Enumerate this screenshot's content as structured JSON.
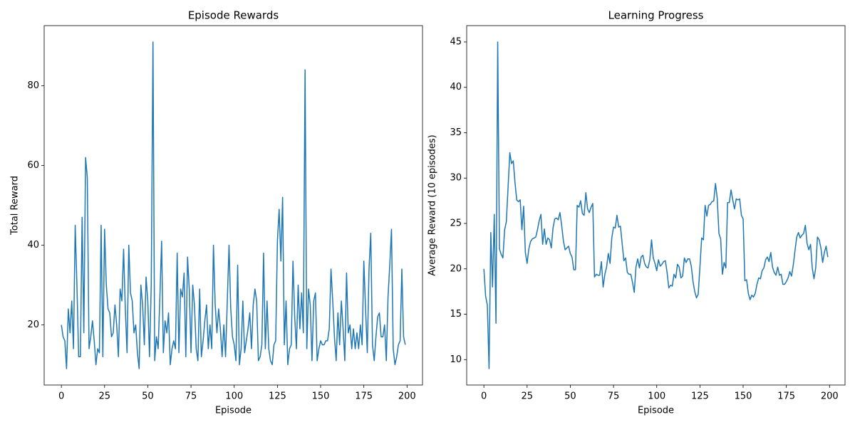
{
  "chart_data": [
    {
      "type": "line",
      "title": "Episode Rewards",
      "xlabel": "Episode",
      "ylabel": "Total Reward",
      "x": [
        0,
        1,
        2,
        3,
        4,
        5,
        6,
        7,
        8,
        9,
        10,
        11,
        12,
        13,
        14,
        15,
        16,
        17,
        18,
        19,
        20,
        21,
        22,
        23,
        24,
        25,
        26,
        27,
        28,
        29,
        30,
        31,
        32,
        33,
        34,
        35,
        36,
        37,
        38,
        39,
        40,
        41,
        42,
        43,
        44,
        45,
        46,
        47,
        48,
        49,
        50,
        51,
        52,
        53,
        54,
        55,
        56,
        57,
        58,
        59,
        60,
        61,
        62,
        63,
        64,
        65,
        66,
        67,
        68,
        69,
        70,
        71,
        72,
        73,
        74,
        75,
        76,
        77,
        78,
        79,
        80,
        81,
        82,
        83,
        84,
        85,
        86,
        87,
        88,
        89,
        90,
        91,
        92,
        93,
        94,
        95,
        96,
        97,
        98,
        99,
        100,
        101,
        102,
        103,
        104,
        105,
        106,
        107,
        108,
        109,
        110,
        111,
        112,
        113,
        114,
        115,
        116,
        117,
        118,
        119,
        120,
        121,
        122,
        123,
        124,
        125,
        126,
        127,
        128,
        129,
        130,
        131,
        132,
        133,
        134,
        135,
        136,
        137,
        138,
        139,
        140,
        141,
        142,
        143,
        144,
        145,
        146,
        147,
        148,
        149,
        150,
        151,
        152,
        153,
        154,
        155,
        156,
        157,
        158,
        159,
        160,
        161,
        162,
        163,
        164,
        165,
        166,
        167,
        168,
        169,
        170,
        171,
        172,
        173,
        174,
        175,
        176,
        177,
        178,
        179,
        180,
        181,
        182,
        183,
        184,
        185,
        186,
        187,
        188,
        189,
        190,
        191,
        192,
        193,
        194,
        195,
        196,
        197,
        198,
        199
      ],
      "series": [
        {
          "color": "#1f77b4",
          "values": [
            20,
            17,
            16,
            9,
            24,
            18,
            26,
            14,
            45,
            30,
            12,
            12,
            47,
            18,
            62,
            57,
            14,
            17,
            21,
            16,
            10,
            14,
            13,
            45,
            12,
            44,
            30,
            24,
            23,
            17,
            18,
            25,
            20,
            12,
            29,
            26,
            39,
            24,
            13,
            40,
            28,
            26,
            18,
            20,
            13,
            9,
            30,
            25,
            15,
            32,
            26,
            12,
            30,
            91,
            11,
            17,
            14,
            27,
            41,
            13,
            21,
            18,
            23,
            10,
            14,
            16,
            14,
            38,
            13,
            29,
            27,
            33,
            12,
            37,
            29,
            13,
            30,
            25,
            14,
            11,
            29,
            12,
            16,
            21,
            25,
            14,
            20,
            14,
            40,
            25,
            18,
            24,
            19,
            12,
            20,
            12,
            26,
            40,
            24,
            17,
            15,
            11,
            35,
            10,
            14,
            26,
            13,
            16,
            19,
            23,
            14,
            25,
            29,
            26,
            11,
            12,
            15,
            38,
            14,
            26,
            14,
            11,
            10,
            15,
            16,
            41,
            49,
            36,
            52,
            15,
            26,
            10,
            14,
            15,
            36,
            22,
            14,
            30,
            19,
            28,
            18,
            84,
            14,
            29,
            25,
            11,
            26,
            28,
            11,
            14,
            16,
            15,
            15,
            16,
            16,
            19,
            34,
            26,
            17,
            11,
            23,
            15,
            26,
            19,
            11,
            33,
            18,
            20,
            14,
            19,
            14,
            18,
            14,
            20,
            15,
            36,
            24,
            13,
            34,
            43,
            15,
            11,
            17,
            22,
            23,
            17,
            17,
            20,
            11,
            27,
            35,
            44,
            14,
            10,
            12,
            15,
            16,
            34,
            17,
            15
          ]
        }
      ],
      "xlim": [
        -9.95,
        208.95
      ],
      "xticks": [
        0,
        25,
        50,
        75,
        100,
        125,
        150,
        175,
        200
      ],
      "ylim": [
        4.9,
        95.1
      ],
      "yticks": [
        20,
        40,
        60,
        80
      ]
    },
    {
      "type": "line",
      "title": "Learning Progress",
      "xlabel": "Episode",
      "ylabel": "Average Reward (10 episodes)",
      "x": [
        0,
        1,
        2,
        3,
        4,
        5,
        6,
        7,
        8,
        9,
        10,
        11,
        12,
        13,
        14,
        15,
        16,
        17,
        18,
        19,
        20,
        21,
        22,
        23,
        24,
        25,
        26,
        27,
        28,
        29,
        30,
        31,
        32,
        33,
        34,
        35,
        36,
        37,
        38,
        39,
        40,
        41,
        42,
        43,
        44,
        45,
        46,
        47,
        48,
        49,
        50,
        51,
        52,
        53,
        54,
        55,
        56,
        57,
        58,
        59,
        60,
        61,
        62,
        63,
        64,
        65,
        66,
        67,
        68,
        69,
        70,
        71,
        72,
        73,
        74,
        75,
        76,
        77,
        78,
        79,
        80,
        81,
        82,
        83,
        84,
        85,
        86,
        87,
        88,
        89,
        90,
        91,
        92,
        93,
        94,
        95,
        96,
        97,
        98,
        99,
        100,
        101,
        102,
        103,
        104,
        105,
        106,
        107,
        108,
        109,
        110,
        111,
        112,
        113,
        114,
        115,
        116,
        117,
        118,
        119,
        120,
        121,
        122,
        123,
        124,
        125,
        126,
        127,
        128,
        129,
        130,
        131,
        132,
        133,
        134,
        135,
        136,
        137,
        138,
        139,
        140,
        141,
        142,
        143,
        144,
        145,
        146,
        147,
        148,
        149,
        150,
        151,
        152,
        153,
        154,
        155,
        156,
        157,
        158,
        159,
        160,
        161,
        162,
        163,
        164,
        165,
        166,
        167,
        168,
        169,
        170,
        171,
        172,
        173,
        174,
        175,
        176,
        177,
        178,
        179,
        180,
        181,
        182,
        183,
        184,
        185,
        186,
        187,
        188,
        189,
        190,
        191,
        192,
        193,
        194,
        195,
        196,
        197,
        198,
        199
      ],
      "series": [
        {
          "color": "#1f77b4",
          "values": [
            20,
            17,
            16,
            9,
            24,
            18,
            26,
            14,
            45,
            22.2,
            21.6,
            21.2,
            24.3,
            25.2,
            29.0,
            32.8,
            31.6,
            31.9,
            29.5,
            27.6,
            27.4,
            27.6,
            24.3,
            26.9,
            21.8,
            20.6,
            22.2,
            23.0,
            23.3,
            23.4,
            23.5,
            24.3,
            25.3,
            26.0,
            22.7,
            24.4,
            22.7,
            23.4,
            23.2,
            22.3,
            24.5,
            25.5,
            25.6,
            25.4,
            26.2,
            24.8,
            23.1,
            22.1,
            22.3,
            22.5,
            21.7,
            21.3,
            19.9,
            19.9,
            27.0,
            26.8,
            27.5,
            26.1,
            25.9,
            28.4,
            26.6,
            26.2,
            26.8,
            27.2,
            19.1,
            19.4,
            19.3,
            19.3,
            20.8,
            18.0,
            19.4,
            20.2,
            21.7,
            20.6,
            23.4,
            24.6,
            24.5,
            25.9,
            24.6,
            24.7,
            22.8,
            20.9,
            21.2,
            19.6,
            19.4,
            19.4,
            18.5,
            17.4,
            20.2,
            21.1,
            20.1,
            21.3,
            21.5,
            20.6,
            20.2,
            20.1,
            21.0,
            23.2,
            21.2,
            20.6,
            19.8,
            21.0,
            20.3,
            20.5,
            20.8,
            20.9,
            19.6,
            17.9,
            18.2,
            18.1,
            19.4,
            19.0,
            20.5,
            20.2,
            19.0,
            19.2,
            21.2,
            20.7,
            21.1,
            21.1,
            20.3,
            18.6,
            17.5,
            16.8,
            17.2,
            20.2,
            23.4,
            23.2,
            27.0,
            25.8,
            27.0,
            27.1,
            27.4,
            27.5,
            29.4,
            27.8,
            23.9,
            23.3,
            19.4,
            20.7,
            20.1,
            27.3,
            27.3,
            28.7,
            27.6,
            26.6,
            27.7,
            27.6,
            27.7,
            25.9,
            25.5,
            18.7,
            18.8,
            17.3,
            16.6,
            17.1,
            16.9,
            17.3,
            18.3,
            19.0,
            18.9,
            19.8,
            20.1,
            21.0,
            21.3,
            20.8,
            21.8,
            20.2,
            19.6,
            19.3,
            20.2,
            19.3,
            19.4,
            18.3,
            18.3,
            18.6,
            19.0,
            19.7,
            19.2,
            20.4,
            22.0,
            23.5,
            24.0,
            23.4,
            23.7,
            23.9,
            24.8,
            22.8,
            22.1,
            22.7,
            20.1,
            18.9,
            20.1,
            23.5,
            23.2,
            22.3,
            20.7,
            21.8,
            22.5,
            21.3
          ]
        }
      ],
      "xlim": [
        -9.95,
        208.95
      ],
      "xticks": [
        0,
        25,
        50,
        75,
        100,
        125,
        150,
        175,
        200
      ],
      "ylim": [
        7.2,
        46.8
      ],
      "yticks": [
        10,
        15,
        20,
        25,
        30,
        35,
        40,
        45
      ]
    }
  ]
}
